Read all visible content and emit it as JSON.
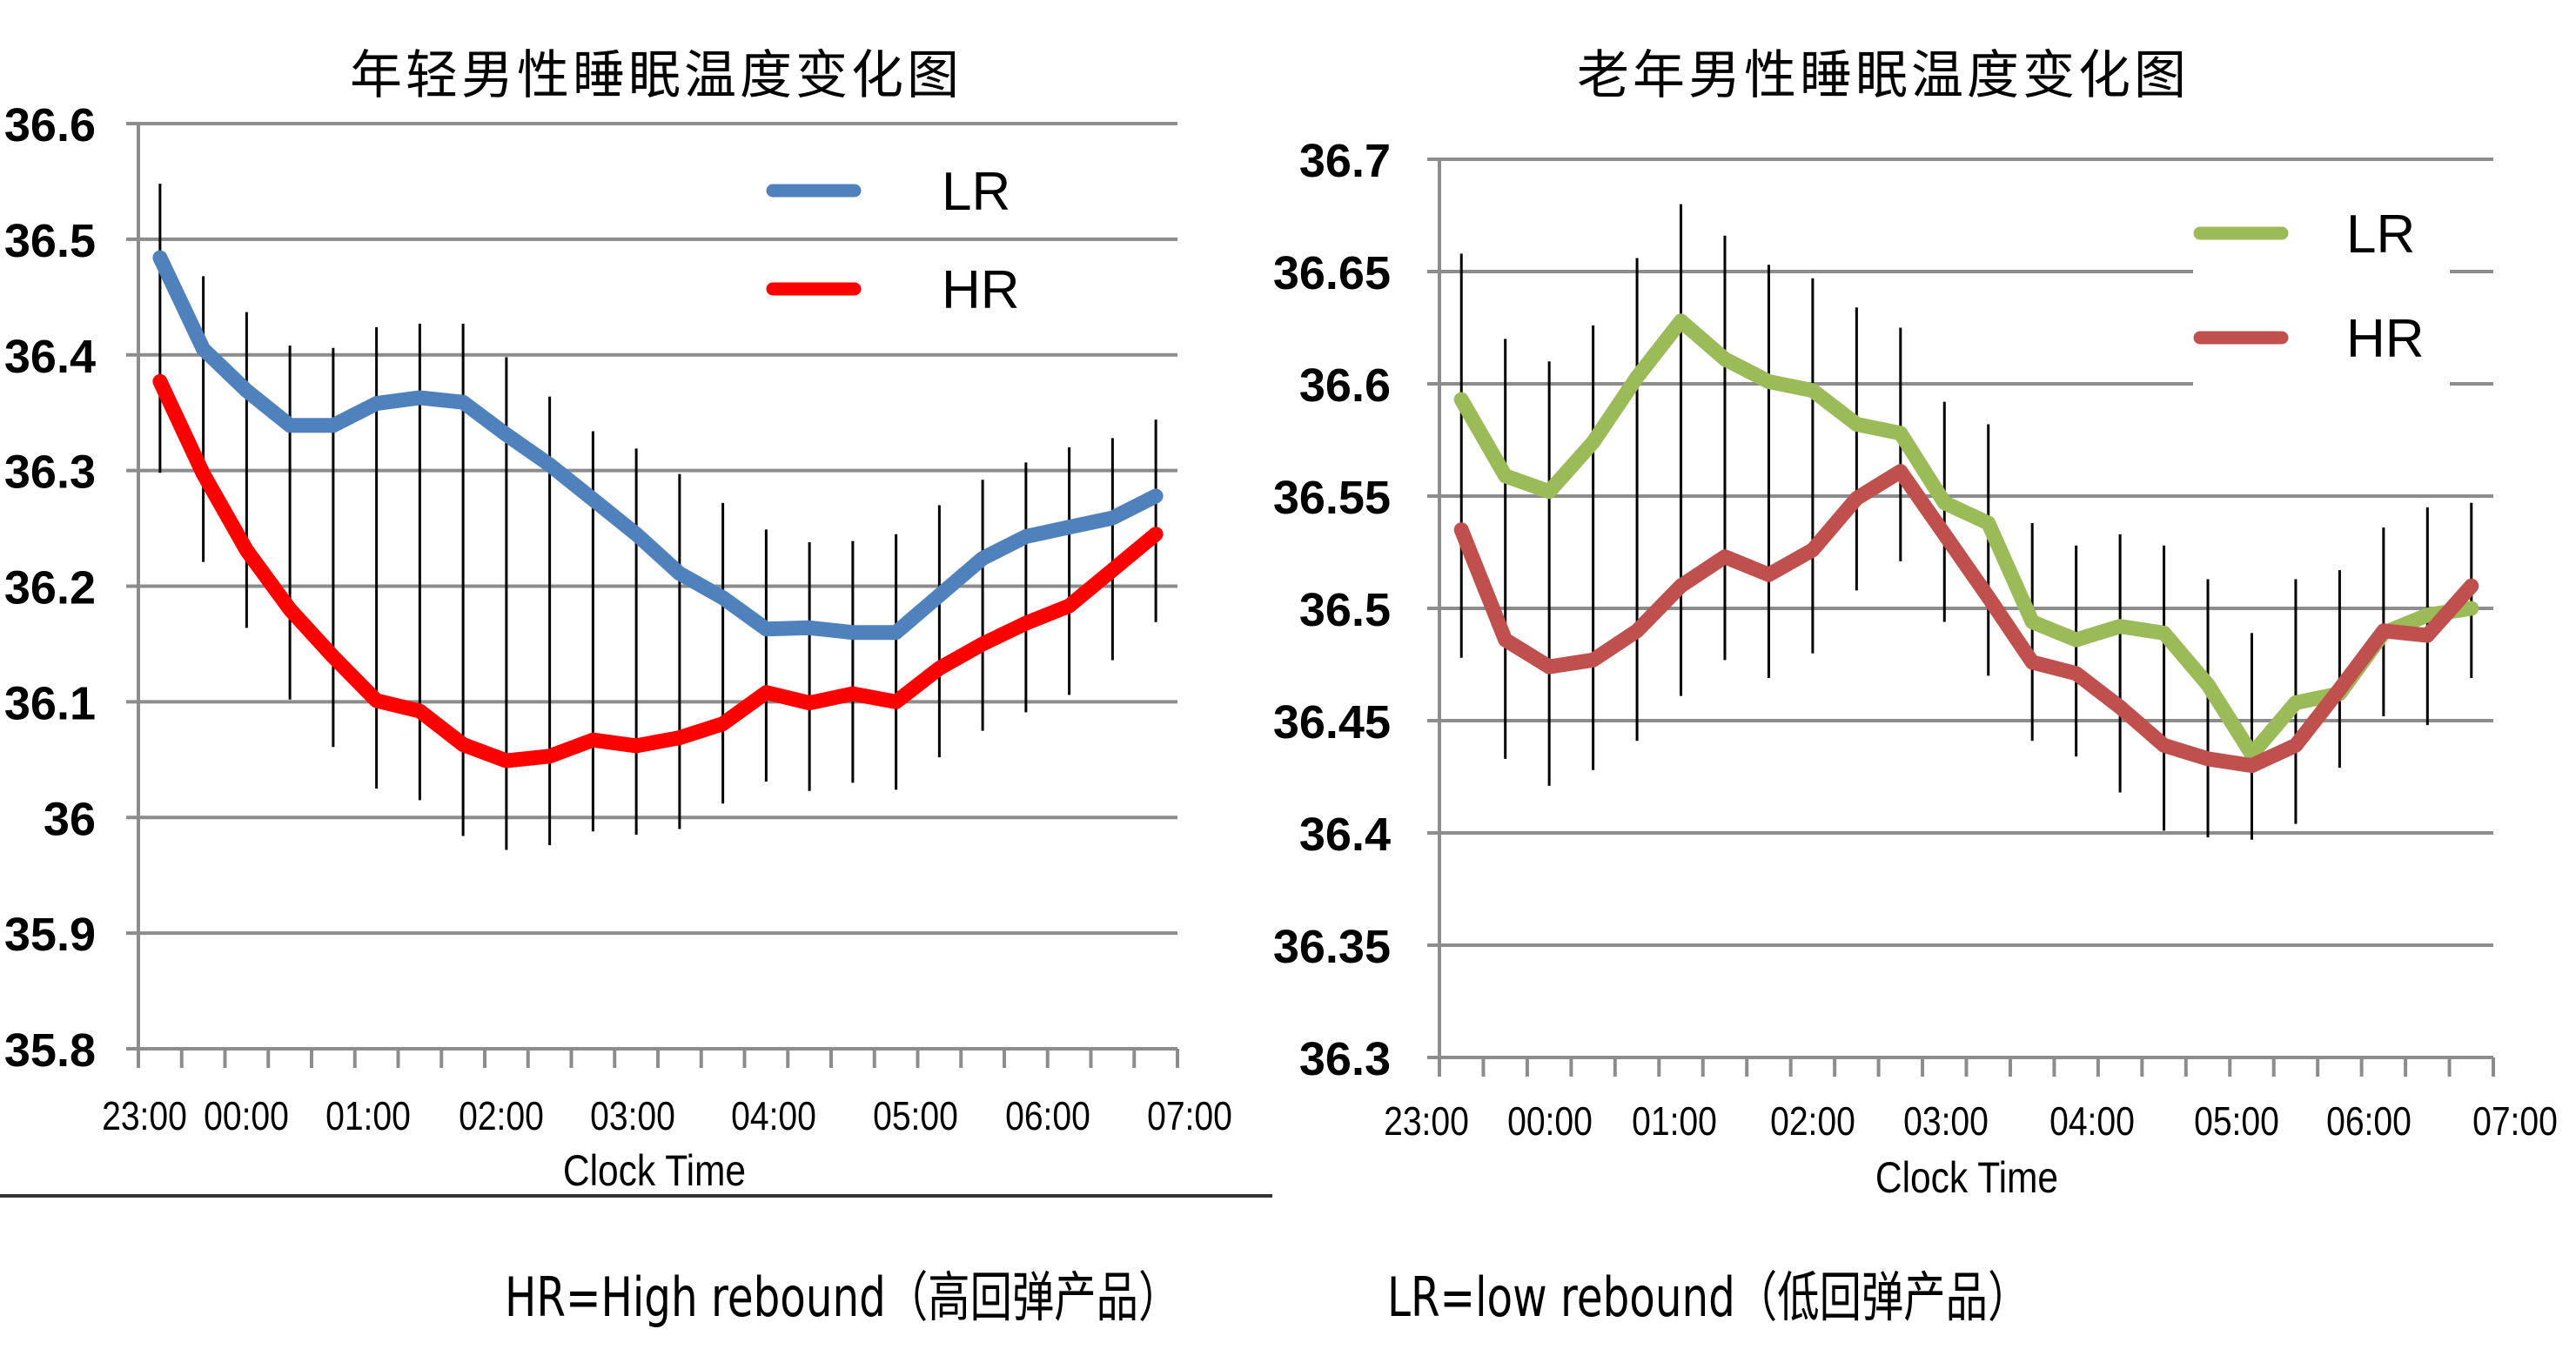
{
  "chart_data": [
    {
      "type": "line",
      "title": "年轻男性睡眠温度变化图",
      "xlabel": "Clock Time",
      "ylabel": "",
      "ylim": [
        35.8,
        36.6
      ],
      "yticks": [
        "36.6",
        "36.5",
        "36.4",
        "36.3",
        "36.2",
        "36.1",
        "36",
        "35.9",
        "35.8"
      ],
      "xtick_labels": [
        "23:00",
        "00:00",
        "01:00",
        "02:00",
        "03:00",
        "04:00",
        "05:00",
        "06:00",
        "07:00"
      ],
      "grid": true,
      "legend_position": "upper-right",
      "n_points": 24,
      "series": [
        {
          "name": "LR",
          "color": "#4F81BD",
          "values": [
            36.484,
            36.405,
            36.369,
            36.339,
            36.339,
            36.358,
            36.363,
            36.359,
            36.331,
            36.305,
            36.275,
            36.245,
            36.211,
            36.19,
            36.163,
            36.164,
            36.16,
            36.16,
            36.192,
            36.224,
            36.243,
            36.251,
            36.259,
            36.278
          ]
        },
        {
          "name": "HR",
          "color": "#FF0000",
          "values": [
            36.377,
            36.297,
            36.231,
            36.18,
            36.139,
            36.101,
            36.092,
            36.063,
            36.049,
            36.053,
            36.067,
            36.062,
            36.069,
            36.081,
            36.108,
            36.099,
            36.107,
            36.1,
            36.129,
            36.15,
            36.168,
            36.183,
            36.214,
            36.245
          ]
        }
      ],
      "error_bars": {
        "top": [
          36.548,
          36.468,
          36.437,
          36.408,
          36.406,
          36.424,
          36.427,
          36.427,
          36.398,
          36.364,
          36.334,
          36.319,
          36.297,
          36.272,
          36.249,
          36.238,
          36.239,
          36.245,
          36.27,
          36.292,
          36.307,
          36.32,
          36.328,
          36.344
        ],
        "bottom": [
          36.298,
          36.221,
          36.164,
          36.102,
          36.061,
          36.025,
          36.015,
          35.984,
          35.972,
          35.976,
          35.988,
          35.985,
          35.99,
          36.012,
          36.031,
          36.023,
          36.03,
          36.024,
          36.052,
          36.075,
          36.091,
          36.106,
          36.136,
          36.169
        ]
      }
    },
    {
      "type": "line",
      "title": "老年男性睡眠温度变化图",
      "xlabel": "Clock Time",
      "ylabel": "",
      "ylim": [
        36.3,
        36.7
      ],
      "yticks": [
        "36.7",
        "36.65",
        "36.6",
        "36.55",
        "36.5",
        "36.45",
        "36.4",
        "36.35",
        "36.3"
      ],
      "xtick_labels": [
        "23:00",
        "00:00",
        "01:00",
        "02:00",
        "03:00",
        "04:00",
        "05:00",
        "06:00",
        "07:00"
      ],
      "grid": true,
      "legend_position": "upper-right",
      "n_points": 24,
      "series": [
        {
          "name": "LR",
          "color": "#9BBB59",
          "values": [
            36.593,
            36.559,
            36.552,
            36.574,
            36.603,
            36.628,
            36.611,
            36.601,
            36.597,
            36.582,
            36.578,
            36.547,
            36.538,
            36.494,
            36.486,
            36.492,
            36.489,
            36.466,
            36.435,
            36.458,
            36.462,
            36.489,
            36.497,
            36.5
          ]
        },
        {
          "name": "HR",
          "color": "#C0504D",
          "values": [
            36.535,
            36.486,
            36.474,
            36.477,
            36.49,
            36.51,
            36.523,
            36.515,
            36.526,
            36.549,
            36.561,
            36.533,
            36.505,
            36.476,
            36.471,
            36.456,
            36.439,
            36.433,
            36.43,
            36.439,
            36.464,
            36.49,
            36.488,
            36.51
          ]
        }
      ],
      "error_bars": {
        "top": [
          36.658,
          36.62,
          36.61,
          36.626,
          36.656,
          36.68,
          36.666,
          36.653,
          36.647,
          36.634,
          36.625,
          36.592,
          36.582,
          36.538,
          36.528,
          36.533,
          36.528,
          36.513,
          36.489,
          36.513,
          36.517,
          36.536,
          36.545,
          36.547
        ],
        "bottom": [
          36.478,
          36.433,
          36.421,
          36.428,
          36.441,
          36.461,
          36.477,
          36.469,
          36.48,
          36.508,
          36.521,
          36.494,
          36.47,
          36.441,
          36.434,
          36.418,
          36.401,
          36.398,
          36.397,
          36.404,
          36.429,
          36.452,
          36.448,
          36.469
        ]
      }
    }
  ],
  "charts": {
    "left": {
      "title": "年轻男性睡眠温度变化图",
      "xlabel": "Clock Time",
      "legend": [
        "LR",
        "HR"
      ]
    },
    "right": {
      "title": "老年男性睡眠温度变化图",
      "xlabel": "Clock Time",
      "legend": [
        "LR",
        "HR"
      ]
    }
  },
  "captions": {
    "hr": "HR=High rebound（高回弹产品）",
    "lr": "LR=low rebound（低回弹产品）"
  }
}
